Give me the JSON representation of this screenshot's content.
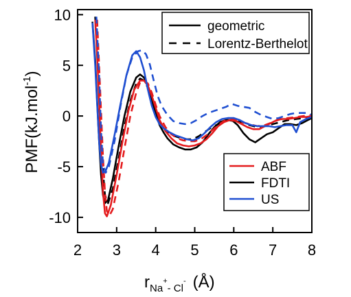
{
  "chart_data": {
    "type": "line",
    "ylabel": {
      "main": "PMF(kJ.mol",
      "sup": "-1",
      "close": ")"
    },
    "xlabel": {
      "r": "r",
      "sub_na": "Na",
      "sup_plus": "+",
      "dash": "- Cl",
      "sup_minus": "-",
      "unit": "(Å)"
    },
    "xlim": [
      2,
      8
    ],
    "ylim": [
      -11.5,
      10.5
    ],
    "xticks": [
      "2",
      "3",
      "4",
      "5",
      "6",
      "7",
      "8"
    ],
    "yticks": [
      "10",
      "5",
      "0",
      "-5",
      "-10"
    ],
    "grid": false,
    "legend_style": {
      "position": "top-right",
      "entries": [
        {
          "label": "geometric",
          "dash": "solid"
        },
        {
          "label": "Lorentz-Berthelot",
          "dash": "dashed"
        }
      ]
    },
    "legend_method": {
      "position": "lower-right",
      "entries": [
        {
          "label": "ABF",
          "color": "#e41a1c"
        },
        {
          "label": "FDTI",
          "color": "#000000"
        },
        {
          "label": "US",
          "color": "#1f4fd1"
        }
      ]
    },
    "series": [
      {
        "method": "FDTI",
        "mixing": "geometric",
        "color": "#000000",
        "dash": "solid",
        "x": [
          2.38,
          2.45,
          2.5,
          2.55,
          2.6,
          2.65,
          2.7,
          2.78,
          2.9,
          3.05,
          3.2,
          3.35,
          3.5,
          3.6,
          3.7,
          3.8,
          3.9,
          4.0,
          4.1,
          4.2,
          4.3,
          4.45,
          4.6,
          4.75,
          4.9,
          5.05,
          5.2,
          5.35,
          5.5,
          5.65,
          5.8,
          5.95,
          6.1,
          6.25,
          6.4,
          6.55,
          6.7,
          6.85,
          7.0,
          7.15,
          7.3,
          7.45,
          7.6,
          7.75,
          7.9,
          8.0
        ],
        "y": [
          9.3,
          5.5,
          1.5,
          -2.5,
          -5.8,
          -7.8,
          -8.6,
          -8.3,
          -6.2,
          -3.0,
          0.0,
          2.4,
          3.8,
          4.1,
          3.8,
          3.0,
          1.6,
          0.3,
          -0.9,
          -1.6,
          -2.2,
          -2.8,
          -3.1,
          -3.3,
          -3.3,
          -3.1,
          -2.6,
          -1.8,
          -1.1,
          -0.6,
          -0.4,
          -0.4,
          -0.9,
          -1.7,
          -2.3,
          -2.6,
          -2.2,
          -1.8,
          -1.6,
          -1.2,
          -0.8,
          -0.8,
          -0.9,
          -0.7,
          -0.4,
          -0.2
        ]
      },
      {
        "method": "FDTI",
        "mixing": "Lorentz-Berthelot",
        "color": "#000000",
        "dash": "dashed",
        "x": [
          2.45,
          2.5,
          2.55,
          2.6,
          2.65,
          2.7,
          2.78,
          2.9,
          3.05,
          3.2,
          3.35,
          3.5,
          3.6,
          3.7,
          3.8,
          3.9,
          4.0,
          4.1,
          4.2,
          4.35,
          4.5,
          4.65,
          4.8,
          4.95,
          5.1,
          5.25,
          5.4,
          5.55,
          5.7,
          5.85,
          6.0,
          6.2,
          6.4,
          6.6,
          6.8,
          7.0,
          7.2,
          7.4,
          7.6,
          7.8,
          8.0
        ],
        "y": [
          9.8,
          6.5,
          2.5,
          -1.8,
          -5.5,
          -7.8,
          -8.6,
          -7.2,
          -4.2,
          -1.0,
          1.5,
          3.2,
          3.7,
          3.5,
          2.8,
          1.8,
          0.6,
          -0.5,
          -1.2,
          -1.7,
          -2.0,
          -2.2,
          -2.3,
          -2.3,
          -2.0,
          -1.6,
          -1.2,
          -0.9,
          -0.6,
          -0.4,
          -0.5,
          -0.6,
          -0.9,
          -1.1,
          -1.0,
          -0.8,
          -0.6,
          -0.4,
          -0.3,
          -0.2,
          -0.1
        ]
      },
      {
        "method": "ABF",
        "mixing": "geometric",
        "color": "#e41a1c",
        "dash": "solid",
        "x": [
          2.45,
          2.5,
          2.55,
          2.6,
          2.65,
          2.7,
          2.75,
          2.85,
          3.0,
          3.15,
          3.3,
          3.45,
          3.6,
          3.7,
          3.8,
          3.9,
          4.0,
          4.1,
          4.25,
          4.4,
          4.55,
          4.7,
          4.85,
          5.0,
          5.15,
          5.3,
          5.45,
          5.6,
          5.75,
          5.9,
          6.05,
          6.2,
          6.35,
          6.5,
          6.65,
          6.8,
          6.95,
          7.1,
          7.25,
          7.4,
          7.55,
          7.7,
          7.85,
          8.0
        ],
        "y": [
          9.5,
          6.0,
          1.5,
          -3.5,
          -7.5,
          -9.6,
          -9.9,
          -8.8,
          -5.8,
          -2.5,
          0.5,
          2.6,
          3.5,
          3.5,
          3.0,
          2.0,
          0.8,
          -0.4,
          -1.5,
          -2.2,
          -2.7,
          -2.9,
          -3.0,
          -2.9,
          -2.7,
          -2.3,
          -1.7,
          -1.0,
          -0.6,
          -0.4,
          -0.5,
          -0.8,
          -1.1,
          -1.3,
          -1.3,
          -1.0,
          -0.7,
          -0.4,
          -0.3,
          -0.3,
          -0.2,
          -0.1,
          -0.1,
          0.0
        ]
      },
      {
        "method": "ABF",
        "mixing": "Lorentz-Berthelot",
        "color": "#e41a1c",
        "dash": "dashed",
        "x": [
          2.5,
          2.55,
          2.6,
          2.65,
          2.7,
          2.75,
          2.82,
          2.9,
          3.05,
          3.2,
          3.35,
          3.5,
          3.6,
          3.7,
          3.8,
          3.9,
          4.0,
          4.1,
          4.25,
          4.4,
          4.55,
          4.7,
          4.85,
          5.0,
          5.15,
          5.3,
          5.45,
          5.6,
          5.75,
          5.9,
          6.05,
          6.2,
          6.4,
          6.6,
          6.8,
          7.0,
          7.2,
          7.4,
          7.6,
          7.8,
          8.0
        ],
        "y": [
          9.5,
          5.0,
          0.5,
          -4.0,
          -7.5,
          -9.4,
          -9.8,
          -9.2,
          -6.5,
          -3.2,
          0.0,
          2.3,
          3.3,
          3.5,
          3.2,
          2.3,
          1.1,
          0.0,
          -1.1,
          -1.8,
          -2.2,
          -2.4,
          -2.5,
          -2.5,
          -2.3,
          -1.9,
          -1.4,
          -0.9,
          -0.5,
          -0.3,
          -0.4,
          -0.6,
          -0.8,
          -1.0,
          -0.9,
          -0.6,
          -0.3,
          -0.2,
          -0.1,
          0.0,
          0.1
        ]
      },
      {
        "method": "US",
        "mixing": "geometric",
        "color": "#1f4fd1",
        "dash": "solid",
        "x": [
          2.38,
          2.45,
          2.5,
          2.55,
          2.6,
          2.65,
          2.72,
          2.8,
          2.95,
          3.1,
          3.25,
          3.4,
          3.5,
          3.6,
          3.7,
          3.8,
          3.9,
          4.0,
          4.1,
          4.2,
          4.35,
          4.5,
          4.65,
          4.8,
          4.95,
          5.1,
          5.25,
          5.4,
          5.55,
          5.7,
          5.85,
          6.0,
          6.15,
          6.3,
          6.45,
          6.6,
          6.75,
          6.9,
          7.05,
          7.2,
          7.35,
          7.5,
          7.6,
          7.7,
          7.85,
          8.0
        ],
        "y": [
          9.2,
          5.0,
          1.2,
          -2.5,
          -4.8,
          -5.6,
          -5.4,
          -4.6,
          -1.8,
          1.2,
          4.0,
          6.0,
          6.4,
          5.8,
          4.5,
          2.6,
          1.0,
          -0.1,
          -0.8,
          -1.2,
          -1.6,
          -1.9,
          -2.1,
          -2.3,
          -2.4,
          -2.2,
          -1.7,
          -1.1,
          -0.6,
          -0.3,
          -0.2,
          -0.2,
          -0.4,
          -0.7,
          -0.9,
          -1.0,
          -1.0,
          -1.0,
          -1.1,
          -1.0,
          -0.9,
          -0.9,
          -1.6,
          -0.6,
          -0.3,
          -0.1
        ]
      },
      {
        "method": "US",
        "mixing": "Lorentz-Berthelot",
        "color": "#1f4fd1",
        "dash": "dashed",
        "x": [
          2.48,
          2.55,
          2.6,
          2.65,
          2.72,
          2.8,
          2.95,
          3.1,
          3.25,
          3.4,
          3.55,
          3.65,
          3.75,
          3.85,
          3.95,
          4.05,
          4.15,
          4.3,
          4.45,
          4.6,
          4.75,
          4.9,
          5.05,
          5.2,
          5.35,
          5.5,
          5.65,
          5.8,
          5.95,
          6.1,
          6.25,
          6.4,
          6.55,
          6.7,
          6.85,
          7.0,
          7.15,
          7.3,
          7.45,
          7.6,
          7.75,
          7.9,
          8.0
        ],
        "y": [
          9.8,
          4.0,
          -1.5,
          -4.8,
          -5.6,
          -5.0,
          -2.4,
          1.0,
          4.0,
          5.8,
          6.4,
          6.5,
          6.1,
          5.1,
          3.5,
          2.0,
          1.0,
          0.1,
          -0.5,
          -0.7,
          -0.8,
          -0.7,
          -0.4,
          0.0,
          0.3,
          0.5,
          0.7,
          0.9,
          1.2,
          1.0,
          0.9,
          0.8,
          0.4,
          0.1,
          -0.1,
          -0.3,
          -0.2,
          0.0,
          0.2,
          0.3,
          0.3,
          0.3,
          0.1
        ]
      }
    ]
  }
}
